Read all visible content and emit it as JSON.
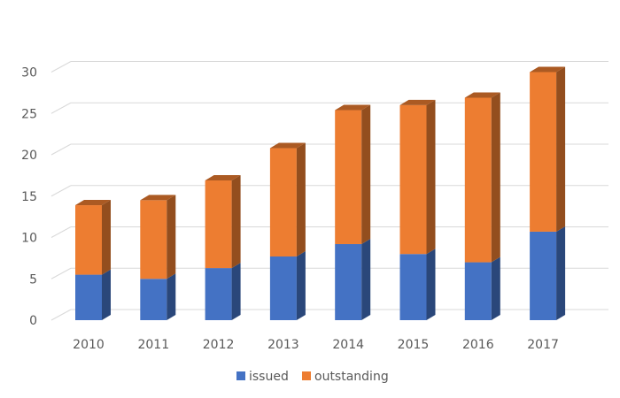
{
  "chart_data": {
    "type": "bar",
    "stacked": true,
    "three_d": true,
    "categories": [
      "2010",
      "2011",
      "2012",
      "2013",
      "2014",
      "2015",
      "2016",
      "2017"
    ],
    "series": [
      {
        "name": "issued",
        "color": "#4472C4",
        "values": [
          5.5,
          5.0,
          6.3,
          7.7,
          9.2,
          8.0,
          7.0,
          10.7
        ]
      },
      {
        "name": "outstanding",
        "color": "#ED7D31",
        "values": [
          8.4,
          9.5,
          10.6,
          13.1,
          16.2,
          18.0,
          19.9,
          19.3
        ]
      }
    ],
    "ylim": [
      0,
      30
    ],
    "yticks": [
      "0",
      "5",
      "10",
      "15",
      "20",
      "25",
      "30"
    ],
    "grid": true,
    "legend_position": "bottom",
    "title": "",
    "xlabel": "",
    "ylabel": ""
  }
}
